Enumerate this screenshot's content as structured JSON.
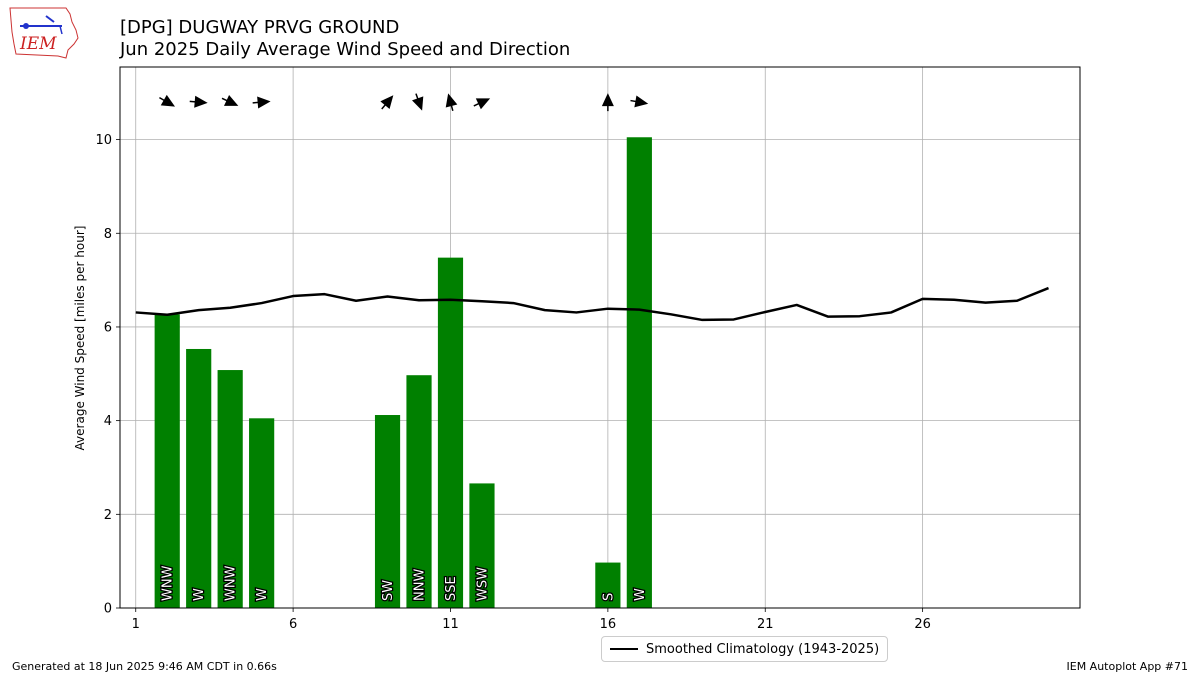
{
  "header": {
    "title_line1": "[DPG] DUGWAY PRVG GROUND",
    "title_line2": "Jun 2025 Daily Average Wind Speed and Direction"
  },
  "logo": {
    "text": "IEM"
  },
  "footer": {
    "generated": "Generated at 18 Jun 2025 9:46 AM CDT in 0.66s",
    "app": "IEM Autoplot App #71"
  },
  "legend": {
    "climatology_label": "Smoothed Climatology (1943-2025)"
  },
  "colors": {
    "bar": "#008000",
    "climatology": "#000000",
    "grid": "#b0b0b0"
  },
  "chart_data": {
    "type": "bar",
    "ylabel": "Average Wind Speed [miles per hour]",
    "xlabel": "",
    "xlim": [
      0.5,
      31
    ],
    "ylim": [
      0,
      11.55
    ],
    "xticks": [
      1,
      6,
      11,
      16,
      21,
      26
    ],
    "yticks": [
      0,
      2,
      4,
      6,
      8,
      10
    ],
    "grid": true,
    "bars": [
      {
        "day": 2,
        "speed": 6.27,
        "dir_label": "WNW",
        "dir_deg": 300
      },
      {
        "day": 3,
        "speed": 5.53,
        "dir_label": "W",
        "dir_deg": 275
      },
      {
        "day": 4,
        "speed": 5.08,
        "dir_label": "WNW",
        "dir_deg": 295
      },
      {
        "day": 5,
        "speed": 4.05,
        "dir_label": "W",
        "dir_deg": 265
      },
      {
        "day": 9,
        "speed": 4.12,
        "dir_label": "SW",
        "dir_deg": 220
      },
      {
        "day": 10,
        "speed": 4.97,
        "dir_label": "NNW",
        "dir_deg": 340
      },
      {
        "day": 11,
        "speed": 7.48,
        "dir_label": "SSE",
        "dir_deg": 165
      },
      {
        "day": 12,
        "speed": 2.66,
        "dir_label": "WSW",
        "dir_deg": 245
      },
      {
        "day": 16,
        "speed": 0.97,
        "dir_label": "S",
        "dir_deg": 180
      },
      {
        "day": 17,
        "speed": 10.05,
        "dir_label": "W",
        "dir_deg": 280
      }
    ],
    "climatology": {
      "name": "Smoothed Climatology (1943-2025)",
      "x": [
        1,
        2,
        3,
        4,
        5,
        6,
        7,
        8,
        9,
        10,
        11,
        12,
        13,
        14,
        15,
        16,
        17,
        18,
        19,
        20,
        21,
        22,
        23,
        24,
        25,
        26,
        27,
        28,
        29,
        30
      ],
      "y": [
        6.31,
        6.26,
        6.36,
        6.41,
        6.51,
        6.66,
        6.7,
        6.56,
        6.65,
        6.57,
        6.58,
        6.55,
        6.51,
        6.36,
        6.31,
        6.39,
        6.37,
        6.27,
        6.15,
        6.16,
        6.32,
        6.47,
        6.22,
        6.23,
        6.31,
        6.6,
        6.58,
        6.52,
        6.56,
        6.83
      ]
    }
  }
}
